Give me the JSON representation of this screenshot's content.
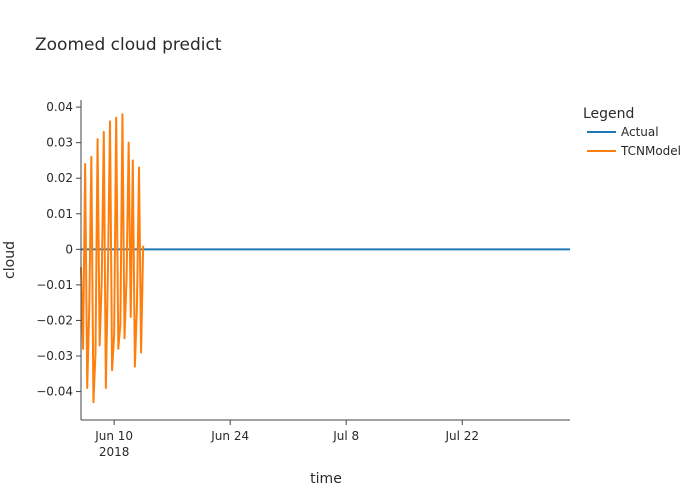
{
  "chart_data": {
    "type": "line",
    "title": "Zoomed cloud predict",
    "xlabel": "time",
    "ylabel": "cloud",
    "xlim": [
      "2018-06-06",
      "2018-08-04"
    ],
    "ylim": [
      -0.048,
      0.042
    ],
    "x_ticks": [
      {
        "date": "2018-06-10",
        "label": "Jun 10",
        "sublabel": "2018"
      },
      {
        "date": "2018-06-24",
        "label": "Jun 24",
        "sublabel": ""
      },
      {
        "date": "2018-07-08",
        "label": "Jul 8",
        "sublabel": ""
      },
      {
        "date": "2018-07-22",
        "label": "Jul 22",
        "sublabel": ""
      }
    ],
    "y_ticks": [
      {
        "value": 0.04,
        "label": "0.04"
      },
      {
        "value": 0.03,
        "label": "0.03"
      },
      {
        "value": 0.02,
        "label": "0.02"
      },
      {
        "value": 0.01,
        "label": "0.01"
      },
      {
        "value": 0,
        "label": "0"
      },
      {
        "value": -0.01,
        "label": "−0.01"
      },
      {
        "value": -0.02,
        "label": "−0.02"
      },
      {
        "value": -0.03,
        "label": "−0.03"
      },
      {
        "value": -0.04,
        "label": "−0.04"
      }
    ],
    "grid": false,
    "legend": {
      "title": "Legend",
      "position": "top-right"
    },
    "series": [
      {
        "name": "Actual",
        "color": "#1f77b4",
        "x": [
          "2018-06-06",
          "2018-08-04"
        ],
        "y": [
          0,
          0
        ]
      },
      {
        "name": "TCNModel",
        "color": "#ff7f0e",
        "x": [
          "2018-06-06 00:00",
          "2018-06-06 06:00",
          "2018-06-06 12:00",
          "2018-06-06 18:00",
          "2018-06-07 00:00",
          "2018-06-07 06:00",
          "2018-06-07 12:00",
          "2018-06-07 18:00",
          "2018-06-08 00:00",
          "2018-06-08 06:00",
          "2018-06-08 12:00",
          "2018-06-08 18:00",
          "2018-06-09 00:00",
          "2018-06-09 06:00",
          "2018-06-09 12:00",
          "2018-06-09 18:00",
          "2018-06-10 00:00",
          "2018-06-10 06:00",
          "2018-06-10 12:00",
          "2018-06-10 18:00",
          "2018-06-11 00:00",
          "2018-06-11 06:00",
          "2018-06-11 12:00",
          "2018-06-11 18:00",
          "2018-06-12 00:00",
          "2018-06-12 06:00",
          "2018-06-12 12:00",
          "2018-06-12 18:00",
          "2018-06-13 00:00",
          "2018-06-13 06:00",
          "2018-06-13 12:00"
        ],
        "y": [
          -0.005,
          -0.028,
          0.024,
          -0.039,
          -0.016,
          0.026,
          -0.043,
          -0.029,
          0.031,
          -0.027,
          -0.009,
          0.033,
          -0.039,
          -0.006,
          0.036,
          -0.034,
          -0.024,
          0.037,
          -0.028,
          -0.021,
          0.038,
          -0.025,
          -0.008,
          0.03,
          -0.019,
          0.025,
          -0.033,
          -0.016,
          0.023,
          -0.029,
          0.001
        ]
      }
    ]
  }
}
